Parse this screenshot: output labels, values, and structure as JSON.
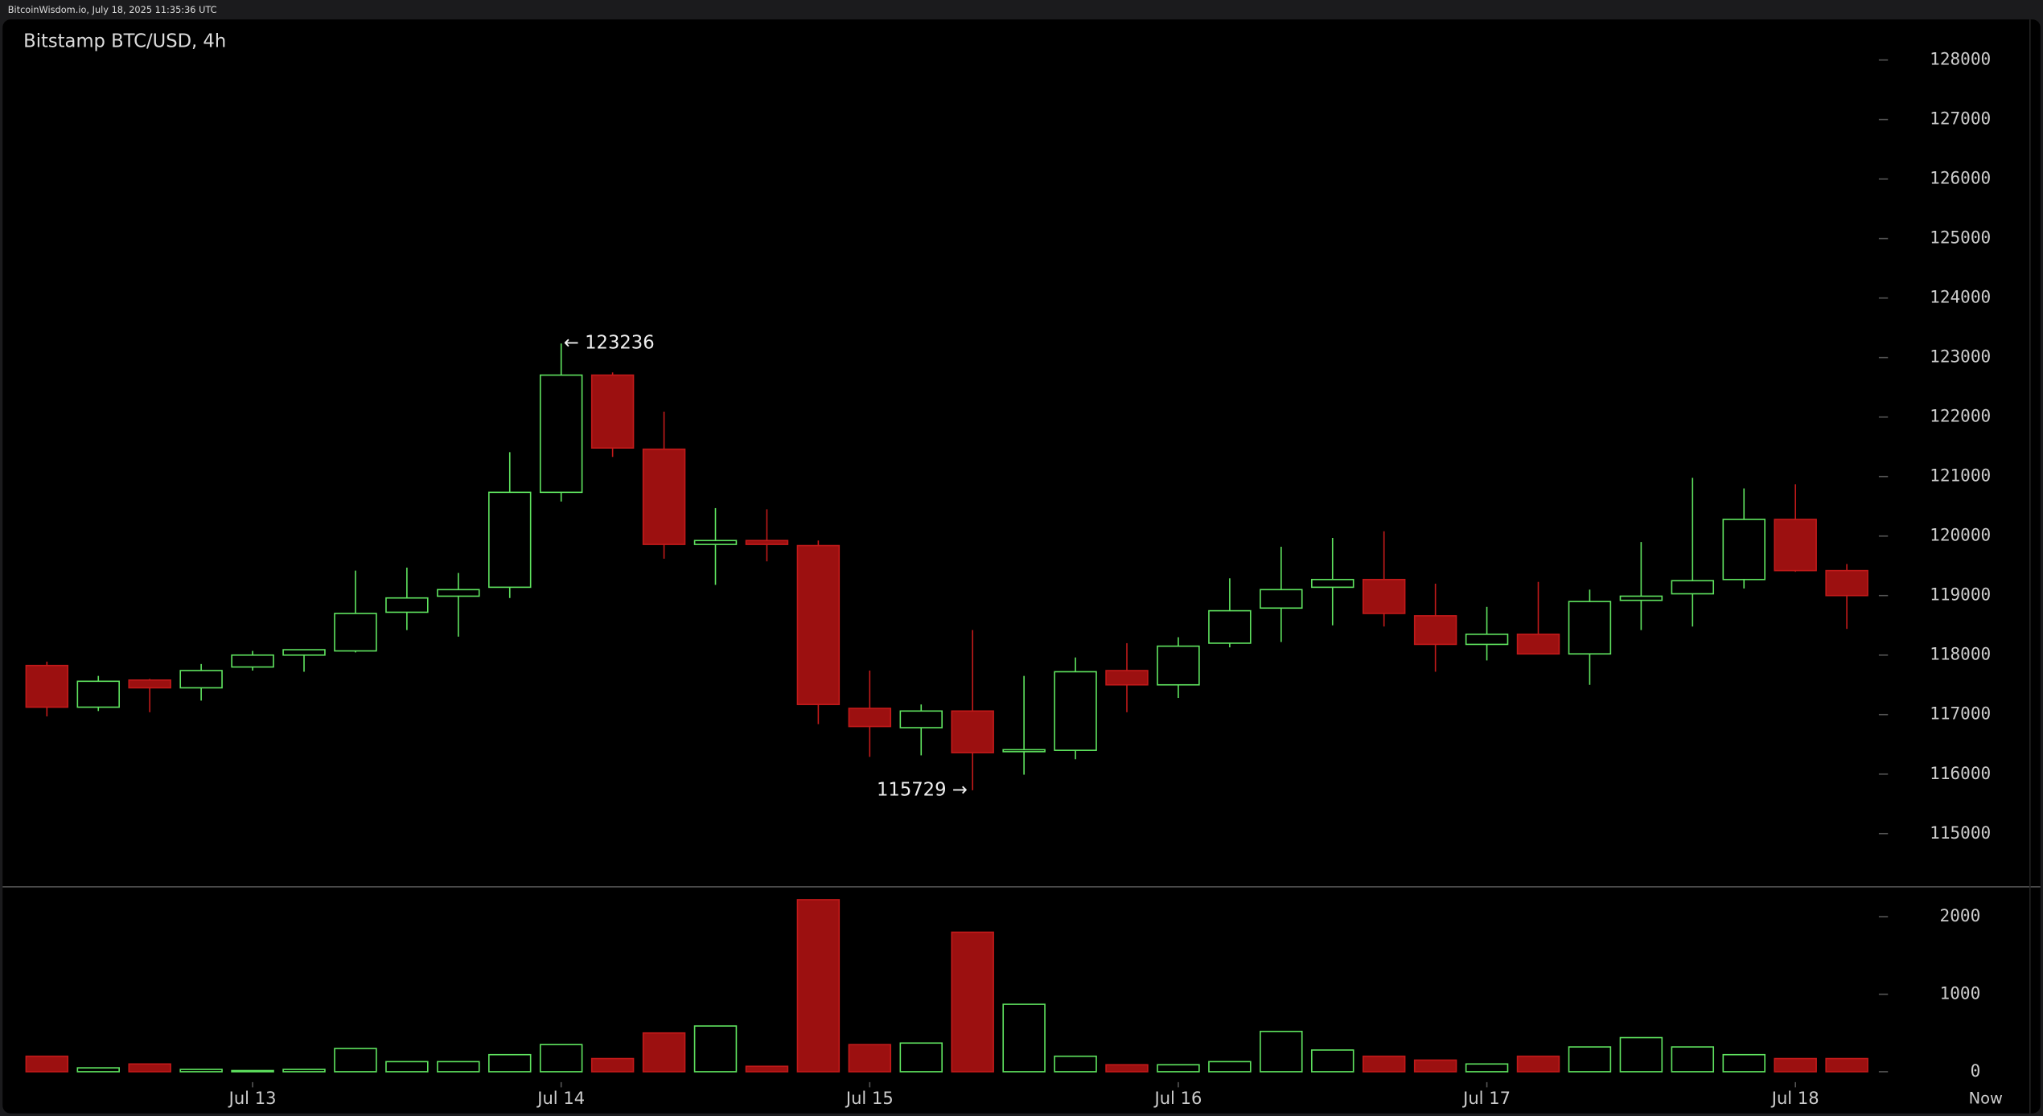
{
  "header": "BitcoinWisdom.io, July 18, 2025 11:35:36 UTC",
  "chart_data": {
    "type": "candlestick",
    "title": "Bitstamp BTC/USD, 4h",
    "categories": [
      null,
      null,
      null,
      null,
      "Jul 13",
      null,
      null,
      null,
      null,
      null,
      "Jul 14",
      null,
      null,
      null,
      null,
      null,
      "Jul 15",
      null,
      null,
      null,
      null,
      null,
      "Jul 16",
      null,
      null,
      null,
      null,
      null,
      "Jul 17",
      null,
      null,
      null,
      null,
      null,
      "Jul 18",
      null
    ],
    "now_label": "Now",
    "open": [
      117825,
      117125,
      117580,
      117450,
      117800,
      118000,
      118070,
      118720,
      118990,
      119140,
      120735,
      122705,
      121460,
      119860,
      119925,
      119840,
      117105,
      116780,
      117060,
      116380,
      116400,
      117740,
      117500,
      118200,
      118790,
      119140,
      119270,
      118660,
      118180,
      118350,
      118020,
      118920,
      119030,
      119270,
      120280,
      119420
    ],
    "high": [
      117890,
      117650,
      117600,
      117850,
      118070,
      118090,
      119420,
      119470,
      119380,
      121410,
      123236,
      122750,
      122090,
      120470,
      120450,
      119925,
      117740,
      117170,
      118420,
      117650,
      117960,
      118200,
      118300,
      119290,
      119820,
      119970,
      120080,
      119200,
      118810,
      119230,
      119100,
      119900,
      120980,
      120800,
      120870,
      119530
    ],
    "low": [
      116970,
      117060,
      117040,
      117235,
      117740,
      117720,
      118045,
      118420,
      118310,
      118960,
      120580,
      121330,
      119620,
      119180,
      119575,
      116840,
      116290,
      116315,
      115729,
      115990,
      116250,
      117040,
      117280,
      118130,
      118220,
      118500,
      118480,
      117720,
      117910,
      118020,
      117500,
      118420,
      118480,
      119120,
      119400,
      118440
    ],
    "close": [
      117125,
      117560,
      117450,
      117740,
      118000,
      118090,
      118700,
      118960,
      119100,
      120735,
      122705,
      121480,
      119860,
      119925,
      119860,
      117170,
      116800,
      117060,
      116360,
      116410,
      117720,
      117500,
      118150,
      118745,
      119100,
      119270,
      118700,
      118180,
      118350,
      118020,
      118900,
      118990,
      119250,
      120280,
      119420,
      119000
    ],
    "volume": [
      200,
      50,
      100,
      30,
      15,
      30,
      300,
      130,
      130,
      220,
      350,
      170,
      500,
      590,
      70,
      2220,
      350,
      370,
      1800,
      870,
      200,
      90,
      90,
      130,
      520,
      280,
      200,
      150,
      100,
      200,
      320,
      440,
      320,
      220,
      170,
      170
    ],
    "annotations": {
      "high": "← 123236",
      "low": "115729 →"
    },
    "up_color": "#5fe35f",
    "down_color": "#9c1010",
    "ylim": [
      114106,
      128680
    ],
    "yticks": [
      115000,
      116000,
      117000,
      118000,
      119000,
      120000,
      121000,
      122000,
      123000,
      124000,
      125000,
      126000,
      127000,
      128000
    ],
    "volume_ylim": [
      0,
      2386
    ],
    "volume_yticks": [
      0,
      1000,
      2000
    ]
  }
}
